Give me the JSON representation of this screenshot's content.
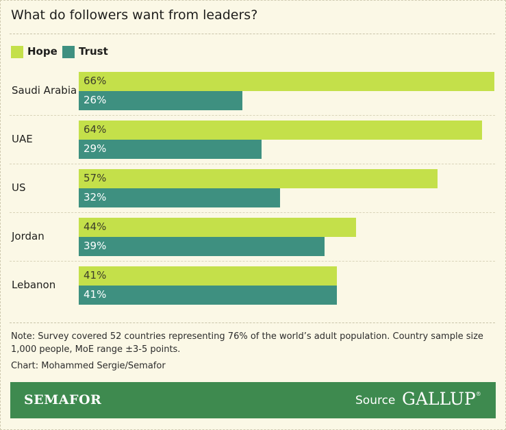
{
  "title": "What do followers want from leaders?",
  "colors": {
    "hope": "#c4e04a",
    "trust": "#3e9080",
    "background": "#fbf8e6",
    "footer": "#3e8a4f"
  },
  "chart_data": {
    "type": "bar",
    "orientation": "horizontal",
    "title": "What do followers want from leaders?",
    "categories": [
      "Saudi Arabia",
      "UAE",
      "US",
      "Jordan",
      "Lebanon"
    ],
    "series": [
      {
        "name": "Hope",
        "values": [
          66,
          64,
          57,
          44,
          41
        ]
      },
      {
        "name": "Trust",
        "values": [
          26,
          29,
          32,
          39,
          41
        ]
      }
    ],
    "value_format": "%",
    "xlim": [
      0,
      66
    ],
    "legend": "top-left",
    "grid": false
  },
  "note": "Note: Survey covered 52 countries representing 76% of the world’s adult population. Country sample size 1,000 people, MoE range ±3-5 points.",
  "credit": "Chart: Mohammed Sergie/Semafor",
  "footer": {
    "brand": "SEMAFOR",
    "source_label": "Source",
    "source_name": "GALLUP"
  }
}
